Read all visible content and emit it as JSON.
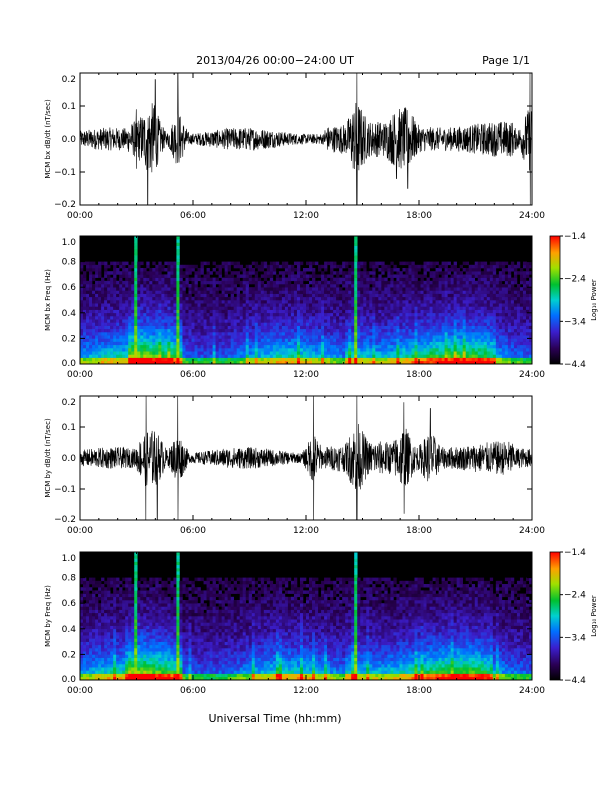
{
  "header": {
    "title": "2013/04/26  00:00−24:00 UT",
    "page": "Page 1/1"
  },
  "xlabel": "Universal Time (hh:mm)",
  "chart_data": [
    {
      "type": "line",
      "ylabel": "MCM bx dB/dt (nT/sec)",
      "x_ticks": [
        "00:00",
        "06:00",
        "12:00",
        "18:00",
        "24:00"
      ],
      "xlim": [
        0,
        24
      ],
      "ylim": [
        -0.2,
        0.2
      ],
      "y_ticks": [
        "0.2",
        "0.1",
        "0.0",
        "−0.1",
        "−0.2"
      ],
      "bursts": [
        {
          "hour": 3.0,
          "amp": 0.09
        },
        {
          "hour": 3.6,
          "amp": 0.2
        },
        {
          "hour": 4.0,
          "amp": 0.18
        },
        {
          "hour": 5.2,
          "amp": 0.21
        },
        {
          "hour": 14.7,
          "amp": 0.21
        },
        {
          "hour": 16.8,
          "amp": 0.12
        },
        {
          "hour": 17.4,
          "amp": 0.15
        },
        {
          "hour": 23.9,
          "amp": 0.21
        }
      ]
    },
    {
      "type": "heatmap",
      "ylabel": "MCM bx Freq (Hz)",
      "x_ticks": [
        "00:00",
        "06:00",
        "12:00",
        "18:00",
        "24:00"
      ],
      "xlim": [
        0,
        24
      ],
      "ylim": [
        0,
        1.0
      ],
      "y_ticks": [
        "1.0",
        "0.8",
        "0.6",
        "0.4",
        "0.2",
        "0.0"
      ],
      "colorbar": {
        "label": "Log₁₀ Power",
        "ticks": [
          "−1.4",
          "−2.4",
          "−3.4",
          "−4.4"
        ],
        "range": [
          -4.4,
          -1.4
        ]
      },
      "bright_lines": [
        2.9,
        5.2,
        14.7
      ]
    },
    {
      "type": "line",
      "ylabel": "MCM by dB/dt (nT/sec)",
      "x_ticks": [
        "00:00",
        "06:00",
        "12:00",
        "18:00",
        "24:00"
      ],
      "xlim": [
        0,
        24
      ],
      "ylim": [
        -0.2,
        0.2
      ],
      "y_ticks": [
        "0.2",
        "0.1",
        "0.0",
        "−0.1",
        "−0.2"
      ],
      "bursts": [
        {
          "hour": 3.5,
          "amp": 0.2
        },
        {
          "hour": 4.1,
          "amp": 0.2
        },
        {
          "hour": 5.2,
          "amp": 0.21
        },
        {
          "hour": 12.4,
          "amp": 0.2
        },
        {
          "hour": 14.7,
          "amp": 0.21
        },
        {
          "hour": 17.2,
          "amp": 0.18
        },
        {
          "hour": 18.6,
          "amp": 0.16
        }
      ]
    },
    {
      "type": "heatmap",
      "ylabel": "MCM by Freq (Hz)",
      "x_ticks": [
        "00:00",
        "06:00",
        "12:00",
        "18:00",
        "24:00"
      ],
      "xlim": [
        0,
        24
      ],
      "ylim": [
        0,
        1.0
      ],
      "y_ticks": [
        "1.0",
        "0.8",
        "0.6",
        "0.4",
        "0.2",
        "0.0"
      ],
      "colorbar": {
        "label": "Log₁₀ Power",
        "ticks": [
          "−1.4",
          "−2.4",
          "−3.4",
          "−4.4"
        ],
        "range": [
          -4.4,
          -1.4
        ]
      },
      "bright_lines": [
        2.9,
        5.2,
        14.7
      ]
    }
  ]
}
